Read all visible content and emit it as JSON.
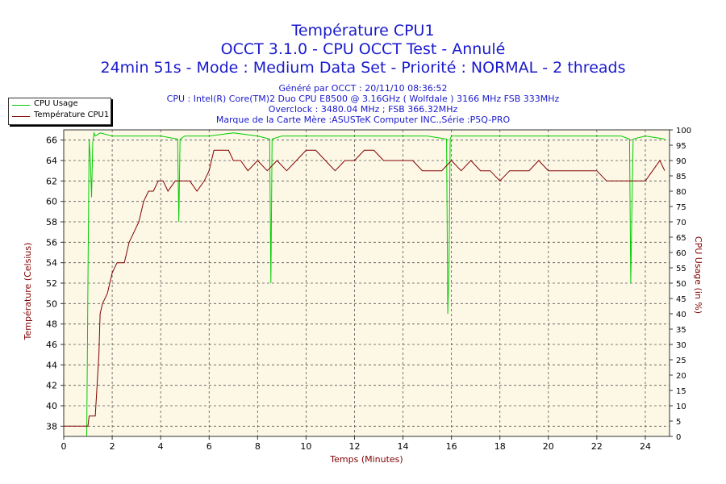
{
  "header": {
    "title": "Température CPU1",
    "subtitle": "OCCT 3.1.0 - CPU OCCT Test - Annulé",
    "details": "24min 51s - Mode : Medium Data Set - Priorité : NORMAL - 2 threads",
    "generated": "Généré par OCCT : 20/11/10 08:36:52",
    "cpu": "CPU : Intel(R) Core(TM)2 Duo CPU E8500 @ 3.16GHz ( Wolfdale ) 3166 MHz FSB 333MHz",
    "overclock": "Overclock : 3480.04 MHz ; FSB 366.32MHz",
    "motherboard": "Marque de la Carte Mère :ASUSTeK Computer INC.,Série :P5Q-PRO"
  },
  "legend": {
    "items": [
      {
        "label": "CPU Usage",
        "color": "#00cc00"
      },
      {
        "label": "Température CPU1",
        "color": "#800000"
      }
    ]
  },
  "colors": {
    "plot_background": "#fdf8e6",
    "grid": "#555555",
    "cpu_usage": "#00cc00",
    "temperature": "#800000",
    "right_axis": "#800000",
    "left_axis": "#800000",
    "x_axis_label": "#800000",
    "title": "#1a1acc"
  },
  "chart_data": {
    "type": "line",
    "xlabel": "Temps (Minutes)",
    "ylabel_left": "Température (Celsius)",
    "ylabel_right": "CPU Usage (in %)",
    "xlim": [
      0,
      25
    ],
    "ylim_left": [
      37,
      67
    ],
    "ylim_right": [
      0,
      100
    ],
    "x_ticks": [
      0,
      2,
      4,
      6,
      8,
      10,
      12,
      14,
      16,
      18,
      20,
      22,
      24
    ],
    "y_left_ticks": [
      38,
      40,
      42,
      44,
      46,
      48,
      50,
      52,
      54,
      56,
      58,
      60,
      62,
      64,
      66
    ],
    "y_right_ticks": [
      0,
      5,
      10,
      15,
      20,
      25,
      30,
      35,
      40,
      45,
      50,
      55,
      60,
      65,
      70,
      75,
      80,
      85,
      90,
      95,
      100
    ],
    "grid": true,
    "legend_position": "top-left",
    "series": [
      {
        "name": "Température CPU1",
        "axis": "left",
        "x": [
          0,
          1.0,
          1.05,
          1.3,
          1.35,
          1.45,
          1.5,
          1.6,
          1.8,
          2.0,
          2.2,
          2.5,
          2.7,
          2.9,
          3.1,
          3.3,
          3.5,
          3.7,
          3.9,
          4.0,
          4.1,
          4.3,
          4.6,
          4.9,
          5.2,
          5.5,
          5.8,
          6.0,
          6.2,
          6.4,
          6.6,
          6.8,
          7.0,
          7.3,
          7.6,
          8.0,
          8.4,
          8.8,
          9.2,
          9.6,
          10.0,
          10.4,
          10.8,
          11.2,
          11.6,
          12.0,
          12.4,
          12.8,
          13.2,
          13.6,
          14.0,
          14.4,
          14.8,
          15.2,
          15.6,
          16.0,
          16.4,
          16.8,
          17.2,
          17.6,
          18.0,
          18.4,
          18.8,
          19.2,
          19.6,
          20.0,
          20.4,
          20.8,
          21.2,
          21.6,
          22.0,
          22.4,
          22.8,
          23.2,
          23.6,
          24.0,
          24.3,
          24.6,
          24.8
        ],
        "values": [
          38,
          38,
          39,
          39,
          41,
          45,
          49,
          50,
          51,
          53,
          54,
          54,
          56,
          57,
          58,
          60,
          61,
          61,
          62,
          62,
          62,
          61,
          62,
          62,
          62,
          61,
          62,
          63,
          65,
          65,
          65,
          65,
          64,
          64,
          63,
          64,
          63,
          64,
          63,
          64,
          65,
          65,
          64,
          63,
          64,
          64,
          65,
          65,
          64,
          64,
          64,
          64,
          63,
          63,
          63,
          64,
          63,
          64,
          63,
          63,
          62,
          63,
          63,
          63,
          64,
          63,
          63,
          63,
          63,
          63,
          63,
          62,
          62,
          62,
          62,
          62,
          63,
          64,
          63
        ]
      },
      {
        "name": "CPU Usage",
        "axis": "right",
        "x": [
          0.95,
          1.0,
          1.05,
          1.1,
          1.15,
          1.2,
          1.25,
          1.3,
          1.5,
          2.0,
          3.0,
          4.0,
          4.7,
          4.75,
          4.8,
          5.0,
          6.0,
          7.0,
          8.0,
          8.5,
          8.55,
          8.6,
          9.0,
          10.0,
          11.0,
          12.0,
          13.0,
          14.0,
          15.0,
          15.8,
          15.85,
          15.9,
          15.95,
          16.0,
          17.0,
          18.0,
          19.0,
          20.0,
          21.0,
          22.0,
          23.0,
          23.35,
          23.4,
          23.45,
          23.5,
          24.0,
          24.8
        ],
        "values": [
          0,
          50,
          97,
          90,
          78,
          96,
          99,
          98,
          99,
          98,
          98,
          98,
          97,
          70,
          97,
          98,
          98,
          99,
          98,
          97,
          50,
          97,
          98,
          98,
          98,
          98,
          98,
          98,
          98,
          97,
          40,
          55,
          97,
          98,
          98,
          98,
          98,
          98,
          98,
          98,
          98,
          97,
          50,
          75,
          97,
          98,
          97
        ]
      }
    ]
  }
}
